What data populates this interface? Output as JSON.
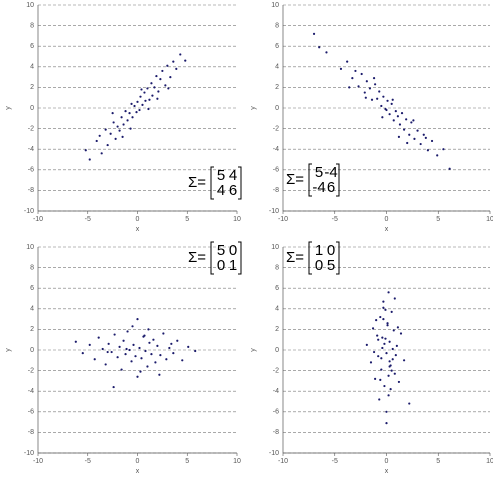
{
  "chart_data": [
    {
      "type": "scatter",
      "xlabel": "x",
      "ylabel": "y",
      "xlim": [
        -10,
        10
      ],
      "ylim": [
        -10,
        10
      ],
      "xticks": [
        -10,
        -5,
        0,
        5,
        10
      ],
      "yticks": [
        -10,
        -8,
        -6,
        -4,
        -2,
        0,
        2,
        4,
        6,
        8,
        10
      ],
      "grid": true,
      "annotation": {
        "text": "Σ=",
        "matrix": [
          [
            5,
            4
          ],
          [
            4,
            6
          ]
        ]
      },
      "series": [
        {
          "color": "#1b1b6b",
          "x": [
            -5.2,
            -4.8,
            -4.1,
            -3.6,
            -3.2,
            -3.0,
            -2.7,
            -2.4,
            -2.2,
            -2.0,
            -1.8,
            -1.6,
            -1.4,
            -1.2,
            -1.0,
            -0.8,
            -0.6,
            -0.5,
            -0.3,
            -0.1,
            0.0,
            0.2,
            0.3,
            0.5,
            0.7,
            0.8,
            1.0,
            1.2,
            1.4,
            1.5,
            1.7,
            1.9,
            2.1,
            2.3,
            2.5,
            2.8,
            3.0,
            3.3,
            3.6,
            3.9,
            4.3,
            4.8,
            -1.5,
            0.4,
            1.1,
            -2.5,
            2.0,
            -0.7,
            3.1,
            -3.8
          ],
          "values": [
            -4.1,
            -5.0,
            -3.2,
            -4.4,
            -2.1,
            -3.6,
            -2.5,
            -1.4,
            -3.0,
            -1.8,
            -2.2,
            -0.9,
            -1.6,
            -0.3,
            -1.2,
            -0.5,
            0.4,
            -0.9,
            0.2,
            -0.4,
            0.6,
            -0.2,
            1.1,
            0.3,
            1.5,
            0.7,
            1.9,
            0.8,
            2.4,
            1.2,
            2.0,
            3.1,
            1.6,
            2.8,
            3.6,
            2.2,
            4.1,
            3.0,
            4.5,
            3.8,
            5.2,
            4.6,
            -2.8,
            1.8,
            -0.1,
            -0.5,
            0.9,
            -2.0,
            1.9,
            -2.7
          ]
        }
      ]
    },
    {
      "type": "scatter",
      "xlabel": "x",
      "ylabel": "y",
      "xlim": [
        -10,
        10
      ],
      "ylim": [
        -10,
        10
      ],
      "xticks": [
        -10,
        -5,
        0,
        5,
        10
      ],
      "yticks": [
        -10,
        -8,
        -6,
        -4,
        -2,
        0,
        2,
        4,
        6,
        8,
        10
      ],
      "grid": true,
      "annotation": {
        "text": "Σ=",
        "matrix": [
          [
            5,
            -4
          ],
          [
            -4,
            6
          ]
        ]
      },
      "series": [
        {
          "color": "#1b1b6b",
          "x": [
            -7.0,
            -6.5,
            -5.8,
            -4.4,
            -3.8,
            -3.3,
            -3.0,
            -2.7,
            -2.4,
            -2.1,
            -1.9,
            -1.6,
            -1.4,
            -1.1,
            -0.9,
            -0.7,
            -0.5,
            -0.3,
            -0.1,
            0.1,
            0.3,
            0.5,
            0.7,
            0.9,
            1.1,
            1.3,
            1.5,
            1.7,
            1.9,
            2.2,
            2.4,
            2.7,
            3.0,
            3.3,
            3.6,
            4.0,
            4.4,
            4.9,
            5.5,
            6.1,
            -2.0,
            0.0,
            1.2,
            2.6,
            -1.2,
            3.8,
            -3.6,
            0.6,
            -0.4,
            2.0
          ],
          "values": [
            7.2,
            5.9,
            5.4,
            3.8,
            4.5,
            2.9,
            3.6,
            2.1,
            3.3,
            1.5,
            2.6,
            1.9,
            0.8,
            2.3,
            0.9,
            1.6,
            0.2,
            1.1,
            -0.1,
            0.7,
            -0.6,
            0.4,
            -1.2,
            -0.3,
            -0.8,
            -1.6,
            -0.5,
            -2.1,
            -1.1,
            -2.6,
            -1.4,
            -3.0,
            -2.2,
            -3.5,
            -2.6,
            -4.1,
            -3.2,
            -4.6,
            -4.0,
            -5.9,
            1.0,
            -0.2,
            -2.8,
            -1.2,
            2.9,
            -2.9,
            2.0,
            0.8,
            -0.9,
            -3.4
          ]
        }
      ]
    },
    {
      "type": "scatter",
      "xlabel": "x",
      "ylabel": "y",
      "xlim": [
        -10,
        10
      ],
      "ylim": [
        -10,
        10
      ],
      "xticks": [
        -10,
        -5,
        0,
        5,
        10
      ],
      "yticks": [
        -10,
        -8,
        -6,
        -4,
        -2,
        0,
        2,
        4,
        6,
        8,
        10
      ],
      "grid": true,
      "annotation": {
        "text": "Σ=",
        "matrix": [
          [
            5,
            0
          ],
          [
            0,
            1
          ]
        ]
      },
      "series": [
        {
          "color": "#1b1b6b",
          "x": [
            -6.2,
            -5.5,
            -4.8,
            -4.3,
            -3.9,
            -3.5,
            -3.2,
            -2.9,
            -2.6,
            -2.3,
            -2.0,
            -1.8,
            -1.6,
            -1.4,
            -1.2,
            -1.0,
            -0.8,
            -0.6,
            -0.4,
            -0.2,
            0.0,
            0.2,
            0.4,
            0.6,
            0.8,
            1.0,
            1.2,
            1.4,
            1.6,
            1.8,
            2.0,
            2.3,
            2.6,
            2.9,
            3.2,
            3.6,
            4.0,
            4.5,
            5.1,
            5.8,
            -2.4,
            -0.5,
            0.3,
            1.1,
            0.0,
            -1.1,
            2.2,
            -3.0,
            0.7,
            3.4
          ],
          "values": [
            0.8,
            -0.3,
            0.5,
            -0.9,
            1.2,
            0.1,
            -1.4,
            0.6,
            -0.2,
            1.5,
            -0.7,
            0.3,
            -1.9,
            0.9,
            -0.4,
            1.8,
            0.0,
            -1.1,
            0.5,
            -0.6,
            3.0,
            0.2,
            -0.8,
            1.3,
            -0.1,
            -1.6,
            0.7,
            -0.4,
            1.0,
            -1.2,
            0.4,
            -0.5,
            1.6,
            -0.9,
            0.2,
            -0.3,
            0.9,
            -1.0,
            0.3,
            -0.1,
            -3.6,
            2.3,
            -2.1,
            2.0,
            -2.6,
            0.1,
            -2.4,
            -0.2,
            1.4,
            0.6
          ]
        }
      ]
    },
    {
      "type": "scatter",
      "xlabel": "x",
      "ylabel": "y",
      "xlim": [
        -10,
        10
      ],
      "ylim": [
        -10,
        10
      ],
      "xticks": [
        -10,
        -5,
        0,
        5,
        10
      ],
      "yticks": [
        -10,
        -8,
        -6,
        -4,
        -2,
        0,
        2,
        4,
        6,
        8,
        10
      ],
      "grid": true,
      "annotation": {
        "text": "Σ=",
        "matrix": [
          [
            1,
            0
          ],
          [
            0,
            5
          ]
        ]
      },
      "series": [
        {
          "color": "#1b1b6b",
          "x": [
            -1.9,
            -1.5,
            -1.3,
            -1.1,
            -0.9,
            -0.8,
            -0.6,
            -0.5,
            -0.4,
            -0.3,
            -0.2,
            -0.1,
            0.0,
            0.1,
            0.2,
            0.3,
            0.4,
            0.5,
            0.6,
            0.7,
            0.8,
            1.0,
            1.2,
            1.4,
            1.7,
            2.2,
            -0.7,
            0.2,
            -0.3,
            0.5,
            -1.0,
            0.9,
            0.0,
            -0.4,
            0.3,
            -0.1,
            0.6,
            -0.6,
            0.1,
            0.4,
            -0.2,
            0.0,
            -0.5,
            1.1,
            -1.2,
            0.8,
            -0.8,
            0.3,
            -0.3,
            0.2
          ],
          "values": [
            0.5,
            -1.2,
            2.1,
            -2.8,
            1.4,
            -0.6,
            3.2,
            -1.9,
            0.2,
            4.1,
            -3.5,
            1.1,
            -0.3,
            2.6,
            -4.4,
            0.8,
            -1.5,
            3.7,
            -0.9,
            1.9,
            -2.3,
            0.4,
            -3.1,
            1.6,
            -1.0,
            -5.2,
            -4.8,
            5.6,
            4.7,
            -2.0,
            2.9,
            -0.5,
            -7.1,
            1.2,
            -1.6,
            3.9,
            0.1,
            -2.9,
            2.4,
            -3.8,
            0.6,
            -6.0,
            -0.8,
            2.2,
            -0.2,
            5.0,
            1.0,
            -1.1,
            3.0,
            -2.5
          ]
        }
      ]
    }
  ]
}
